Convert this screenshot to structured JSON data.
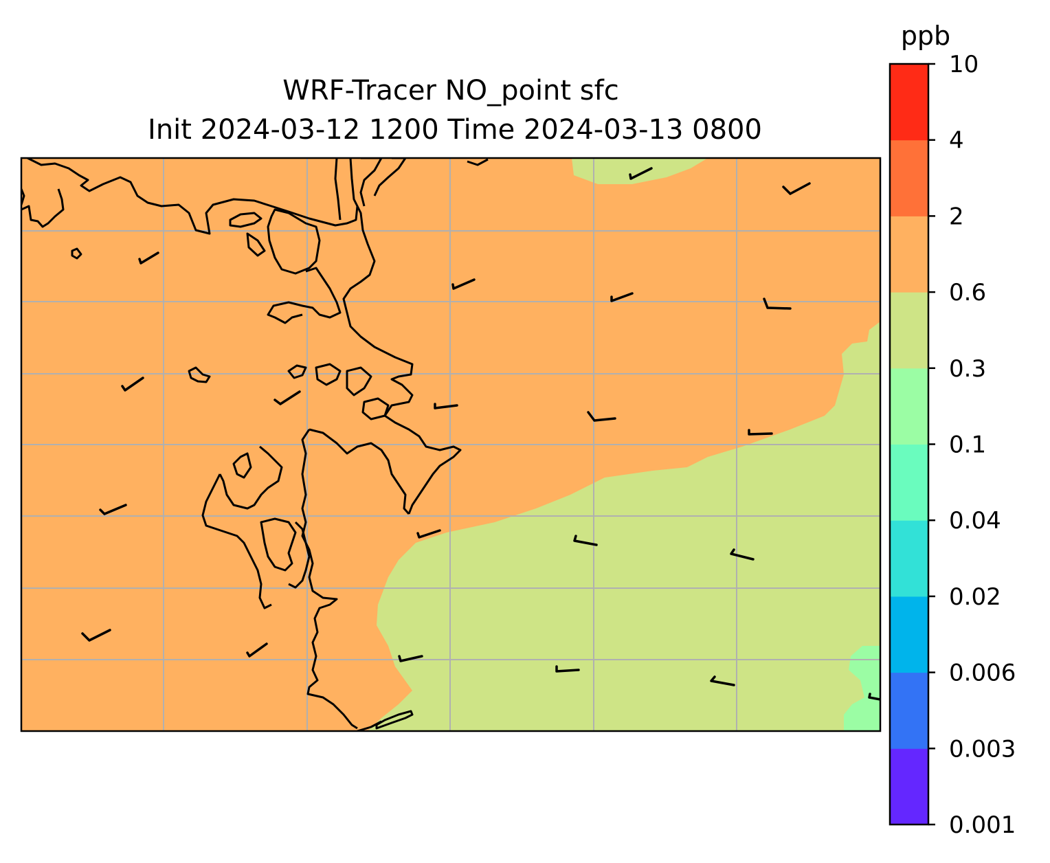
{
  "title": {
    "line1": "WRF-Tracer NO_point sfc",
    "line2": "Init 2024-03-12 1200 Time 2024-03-13 0800"
  },
  "colorbar": {
    "unit": "ppb",
    "ticks": [
      "0.001",
      "0.003",
      "0.006",
      "0.02",
      "0.04",
      "0.1",
      "0.3",
      "0.6",
      "2",
      "4",
      "10"
    ],
    "colors": [
      "#6427ff",
      "#3373f5",
      "#00b4eb",
      "#32e1d7",
      "#6afcbe",
      "#9bfda4",
      "#cee486",
      "#ffb160",
      "#ff7138",
      "#ff2b16"
    ]
  },
  "map": {
    "field_colors": {
      "land_high": "#ffb160",
      "low": "#cee486",
      "lower": "#9bfda4"
    },
    "gridline_color": "#b0b0b0",
    "coastline_color": "#000000"
  }
}
